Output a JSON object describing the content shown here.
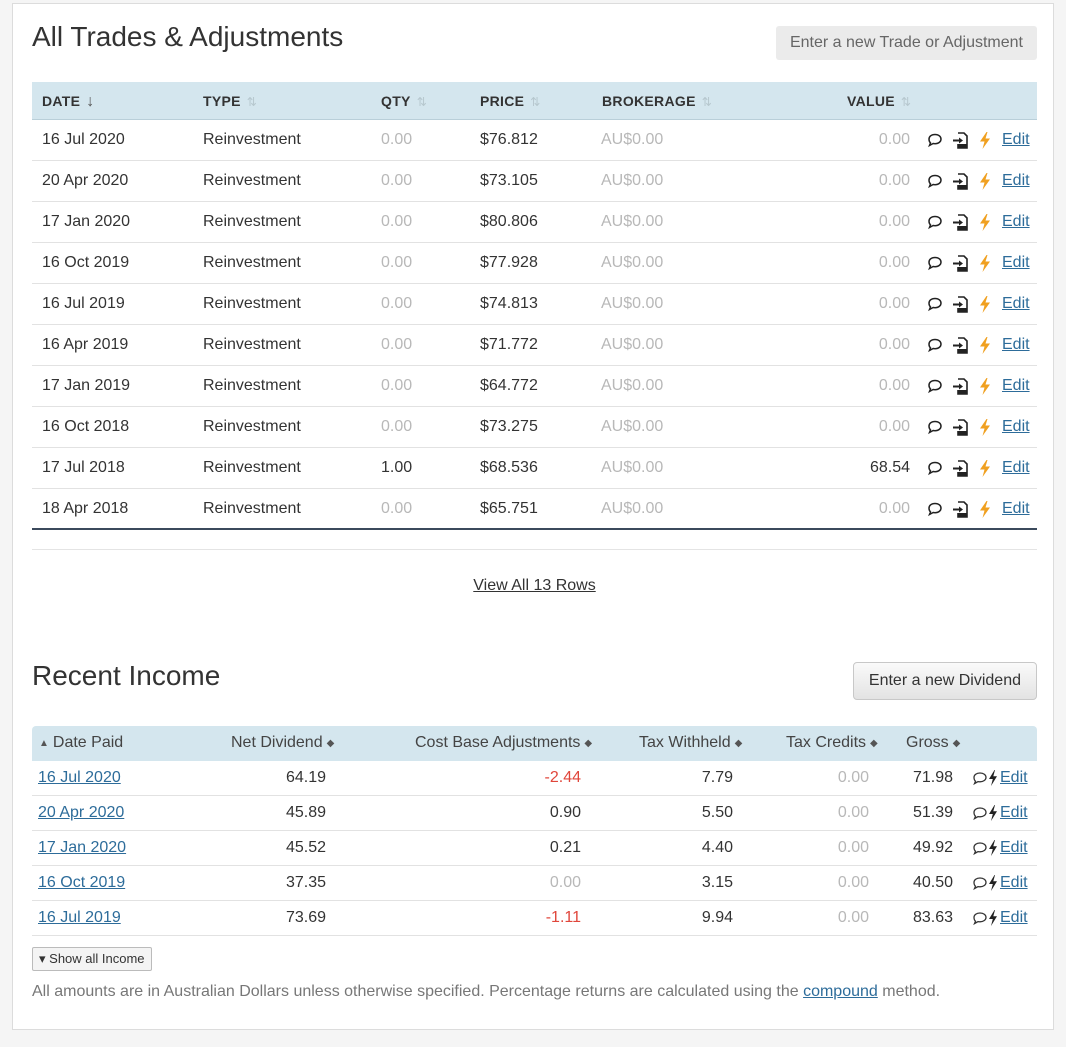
{
  "trades": {
    "title": "All Trades & Adjustments",
    "new_button": "Enter a new Trade or Adjustment",
    "columns": [
      "DATE",
      "TYPE",
      "QTY",
      "PRICE",
      "BROKERAGE",
      "VALUE"
    ],
    "rows": [
      {
        "date": "16 Jul 2020",
        "type": "Reinvestment",
        "qty": "0.00",
        "price": "$76.812",
        "brokerage": "AU$0.00",
        "value": "0.00",
        "edit": "Edit"
      },
      {
        "date": "20 Apr 2020",
        "type": "Reinvestment",
        "qty": "0.00",
        "price": "$73.105",
        "brokerage": "AU$0.00",
        "value": "0.00",
        "edit": "Edit"
      },
      {
        "date": "17 Jan 2020",
        "type": "Reinvestment",
        "qty": "0.00",
        "price": "$80.806",
        "brokerage": "AU$0.00",
        "value": "0.00",
        "edit": "Edit"
      },
      {
        "date": "16 Oct 2019",
        "type": "Reinvestment",
        "qty": "0.00",
        "price": "$77.928",
        "brokerage": "AU$0.00",
        "value": "0.00",
        "edit": "Edit"
      },
      {
        "date": "16 Jul 2019",
        "type": "Reinvestment",
        "qty": "0.00",
        "price": "$74.813",
        "brokerage": "AU$0.00",
        "value": "0.00",
        "edit": "Edit"
      },
      {
        "date": "16 Apr 2019",
        "type": "Reinvestment",
        "qty": "0.00",
        "price": "$71.772",
        "brokerage": "AU$0.00",
        "value": "0.00",
        "edit": "Edit"
      },
      {
        "date": "17 Jan 2019",
        "type": "Reinvestment",
        "qty": "0.00",
        "price": "$64.772",
        "brokerage": "AU$0.00",
        "value": "0.00",
        "edit": "Edit"
      },
      {
        "date": "16 Oct 2018",
        "type": "Reinvestment",
        "qty": "0.00",
        "price": "$73.275",
        "brokerage": "AU$0.00",
        "value": "0.00",
        "edit": "Edit"
      },
      {
        "date": "17 Jul 2018",
        "type": "Reinvestment",
        "qty": "1.00",
        "price": "$68.536",
        "brokerage": "AU$0.00",
        "value": "68.54",
        "edit": "Edit"
      },
      {
        "date": "18 Apr 2018",
        "type": "Reinvestment",
        "qty": "0.00",
        "price": "$65.751",
        "brokerage": "AU$0.00",
        "value": "0.00",
        "edit": "Edit"
      }
    ],
    "view_all": "View All 13 Rows"
  },
  "income": {
    "title": "Recent Income",
    "new_button": "Enter a new Dividend",
    "columns": [
      "Date Paid",
      "Net Dividend",
      "Cost Base Adjustments",
      "Tax Withheld",
      "Tax Credits",
      "Gross"
    ],
    "rows": [
      {
        "date": "16 Jul 2020",
        "net": "64.19",
        "cba": "-2.44",
        "tax_withheld": "7.79",
        "tax_credits": "0.00",
        "gross": "71.98",
        "edit": "Edit"
      },
      {
        "date": "20 Apr 2020",
        "net": "45.89",
        "cba": "0.90",
        "tax_withheld": "5.50",
        "tax_credits": "0.00",
        "gross": "51.39",
        "edit": "Edit"
      },
      {
        "date": "17 Jan 2020",
        "net": "45.52",
        "cba": "0.21",
        "tax_withheld": "4.40",
        "tax_credits": "0.00",
        "gross": "49.92",
        "edit": "Edit"
      },
      {
        "date": "16 Oct 2019",
        "net": "37.35",
        "cba": "0.00",
        "tax_withheld": "3.15",
        "tax_credits": "0.00",
        "gross": "40.50",
        "edit": "Edit"
      },
      {
        "date": "16 Jul 2019",
        "net": "73.69",
        "cba": "-1.11",
        "tax_withheld": "9.94",
        "tax_credits": "0.00",
        "gross": "83.63",
        "edit": "Edit"
      }
    ],
    "show_all": "Show all Income"
  },
  "footer": {
    "text_before": "All amounts are in Australian Dollars unless otherwise specified. Percentage returns are calculated using the ",
    "link": "compound",
    "text_after": " method."
  },
  "icons": {
    "comment": "comment-icon",
    "transfer": "transfer-icon",
    "lightning": "lightning-icon",
    "sort": "sort-icon",
    "caret_down": "caret-down-icon"
  },
  "colors": {
    "header_bg": "#d4e6ee",
    "link": "#2d6c9a",
    "negative": "#e0463b",
    "muted": "#b8b8b8",
    "lightning": "#f0a020"
  }
}
